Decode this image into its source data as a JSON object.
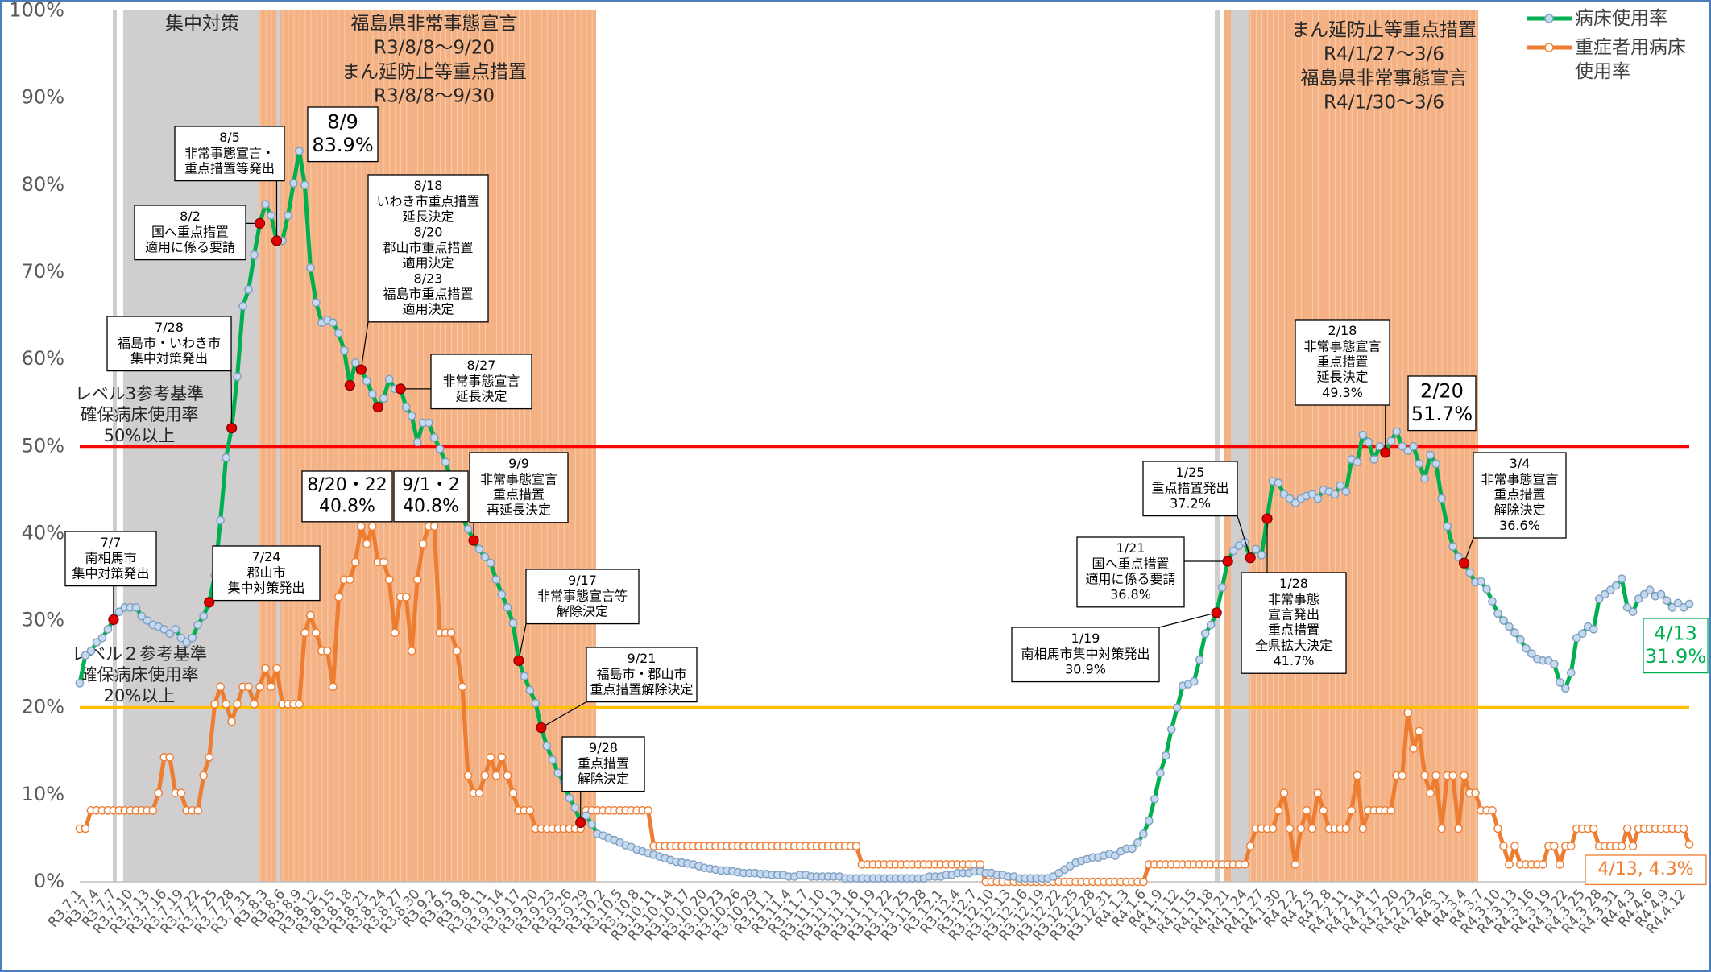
{
  "chart_data": {
    "type": "line",
    "categories": [
      "R3.7.1",
      null,
      null,
      "R3.7.4",
      null,
      null,
      "R3.7.7",
      null,
      null,
      "R3.7.10",
      null,
      null,
      "R3.7.13",
      null,
      null,
      "R3.7.16",
      null,
      null,
      "R3.7.19",
      null,
      null,
      "R3.7.22",
      null,
      null,
      "R3.7.25",
      null,
      null,
      "R3.7.28",
      null,
      null,
      "R3.7.31",
      null,
      null,
      "R3.8.3",
      null,
      null,
      "R3.8.6",
      null,
      null,
      "R3.8.9",
      null,
      null,
      "R3.8.12",
      null,
      null,
      "R3.8.15",
      null,
      null,
      "R3.8.18",
      null,
      null,
      "R3.8.21",
      null,
      null,
      "R3.8.24",
      null,
      null,
      "R3.8.27",
      null,
      null,
      "R3.8.30",
      null,
      null,
      "R3.9.2",
      null,
      null,
      "R3.9.5",
      null,
      null,
      "R3.9.8",
      null,
      null,
      "R3.9.11",
      null,
      null,
      "R3.9.14",
      null,
      null,
      "R3.9.17",
      null,
      null,
      "R3.9.20",
      null,
      null,
      "R3.9.23",
      null,
      null,
      "R3.9.26",
      null,
      null,
      "R3.9.29",
      null,
      null,
      "R3.10.2",
      null,
      null,
      "R3.10.5",
      null,
      null,
      "R3.10.8",
      null,
      null,
      "R3.10.11",
      null,
      null,
      "R3.10.14",
      null,
      null,
      "R3.10.17",
      null,
      null,
      "R3.10.20",
      null,
      null,
      "R3.10.23",
      null,
      null,
      "R3.10.26",
      null,
      null,
      "R3.10.29",
      null,
      null,
      "R3.11.1",
      null,
      null,
      "R3.11.4",
      null,
      null,
      "R3.11.7",
      null,
      null,
      "R3.11.10",
      null,
      null,
      "R3.11.13",
      null,
      null,
      "R3.11.16",
      null,
      null,
      "R3.11.19",
      null,
      null,
      "R3.11.22",
      null,
      null,
      "R3.11.25",
      null,
      null,
      "R3.11.28",
      null,
      null,
      "R3.12.1",
      null,
      null,
      "R3.12.4",
      null,
      null,
      "R3.12.7",
      null,
      null,
      "R3.12.10",
      null,
      null,
      "R3.12.13",
      null,
      null,
      "R3.12.16",
      null,
      null,
      "R3.12.19",
      null,
      null,
      "R3.12.22",
      null,
      null,
      "R3.12.25",
      null,
      null,
      "R3.12.28",
      null,
      null,
      "R3.12.31",
      null,
      null,
      "R4.1.3",
      null,
      null,
      "R4.1.6",
      null,
      null,
      "R4.1.9",
      null,
      null,
      "R4.1.12",
      null,
      null,
      "R4.1.15",
      null,
      null,
      "R4.1.18",
      null,
      null,
      "R4.1.21",
      null,
      null,
      "R4.1.24",
      null,
      null,
      "R4.1.27",
      null,
      null,
      "R4.1.30",
      null,
      null,
      "R4.2.2",
      null,
      null,
      "R4.2.5",
      null,
      null,
      "R4.2.8",
      null,
      null,
      "R4.2.11",
      null,
      null,
      "R4.2.14",
      null,
      null,
      "R4.2.17",
      null,
      null,
      "R4.2.20",
      null,
      null,
      "R4.2.23",
      null,
      null,
      "R4.2.26",
      null,
      null,
      "R4.3.1",
      null,
      null,
      "R4.3.4",
      null,
      null,
      "R4.3.7",
      null,
      null,
      "R4.3.10",
      null,
      null,
      "R4.3.13",
      null,
      null,
      "R4.3.16",
      null,
      null,
      "R4.3.19",
      null,
      null,
      "R4.3.22",
      null,
      null,
      "R4.3.25",
      null,
      null,
      "R4.3.28",
      null,
      null,
      "R4.3.31",
      null,
      null,
      "R4.4.3",
      null,
      null,
      "R4.4.6",
      null,
      null,
      "R4.4.9",
      null,
      null,
      "R4.4.12",
      null
    ],
    "series": [
      {
        "name": "重症者用病床使用率",
        "color": "#ed7d31",
        "marker_color": "#ffffff",
        "values": [
          6.1,
          6.1,
          8.2,
          8.2,
          8.2,
          8.2,
          8.2,
          8.2,
          8.2,
          8.2,
          8.2,
          8.2,
          8.2,
          8.2,
          10.2,
          14.3,
          14.3,
          10.2,
          10.2,
          8.2,
          8.2,
          8.2,
          12.2,
          14.3,
          20.4,
          22.4,
          20.4,
          18.4,
          20.4,
          22.4,
          22.4,
          20.4,
          22.4,
          24.5,
          22.4,
          24.5,
          20.4,
          20.4,
          20.4,
          20.4,
          28.6,
          30.6,
          28.6,
          26.5,
          26.5,
          22.4,
          32.7,
          34.7,
          34.7,
          36.7,
          40.8,
          38.8,
          40.8,
          36.7,
          36.7,
          34.7,
          28.6,
          32.7,
          32.7,
          26.5,
          34.7,
          38.8,
          40.8,
          40.8,
          28.6,
          28.6,
          28.6,
          26.5,
          22.4,
          12.2,
          10.2,
          10.2,
          12.2,
          14.3,
          12.2,
          14.3,
          12.2,
          10.2,
          8.2,
          8.2,
          8.2,
          6.1,
          6.1,
          6.1,
          6.1,
          6.1,
          6.1,
          6.1,
          6.1,
          6.1,
          8.2,
          8.2,
          8.2,
          8.2,
          8.2,
          8.2,
          8.2,
          8.2,
          8.2,
          8.2,
          8.2,
          8.2,
          4.1,
          4.1,
          4.1,
          4.1,
          4.1,
          4.1,
          4.1,
          4.1,
          4.1,
          4.1,
          4.1,
          4.1,
          4.1,
          4.1,
          4.1,
          4.1,
          4.1,
          4.1,
          4.1,
          4.1,
          4.1,
          4.1,
          4.1,
          4.1,
          4.1,
          4.1,
          4.1,
          4.1,
          4.1,
          4.1,
          4.1,
          4.1,
          4.1,
          4.1,
          4.1,
          4.1,
          4.1,
          2.0,
          2.0,
          2.0,
          2.0,
          2.0,
          2.0,
          2.0,
          2.0,
          2.0,
          2.0,
          2.0,
          2.0,
          2.0,
          2.0,
          2.0,
          2.0,
          2.0,
          2.0,
          2.0,
          2.0,
          2.0,
          2.0,
          0,
          0,
          0,
          0,
          0,
          0,
          0,
          0,
          0,
          0,
          0,
          0,
          0,
          0,
          0,
          0,
          0,
          0,
          0,
          0,
          0,
          0,
          0,
          0,
          0,
          0,
          0,
          0,
          0,
          2.0,
          2.0,
          2.0,
          2.0,
          2.0,
          2.0,
          2.0,
          2.0,
          2.0,
          2.0,
          2.0,
          2.0,
          2.0,
          2.0,
          2.0,
          2.0,
          2.0,
          2.0,
          4.1,
          6.1,
          6.1,
          6.1,
          6.1,
          8.2,
          10.2,
          6.1,
          2.0,
          6.1,
          8.2,
          6.1,
          10.2,
          8.2,
          6.1,
          6.1,
          6.1,
          6.1,
          8.2,
          12.2,
          6.1,
          8.2,
          8.2,
          8.2,
          8.2,
          8.2,
          12.2,
          12.2,
          19.4,
          15.3,
          17.3,
          12.2,
          10.2,
          12.2,
          6.1,
          12.2,
          12.2,
          6.1,
          12.2,
          10.2,
          10.2,
          8.2,
          8.2,
          8.2,
          6.1,
          4.1,
          2.0,
          4.1,
          2.0,
          2.0,
          2.0,
          2.0,
          2.0,
          4.1,
          4.1,
          2.0,
          4.1,
          4.1,
          6.1,
          6.1,
          6.1,
          6.1,
          4.1,
          4.1,
          4.1,
          4.1,
          4.1,
          6.1,
          4.1,
          6.1,
          6.1,
          6.1,
          6.1,
          6.1,
          6.1,
          6.1,
          6.1,
          6.1,
          4.3
        ]
      },
      {
        "name": "病床使用率",
        "color": "#00b050",
        "marker_color": "#c5d9f1",
        "values": [
          22.8,
          26.0,
          26.5,
          27.5,
          28.0,
          29.0,
          30.1,
          31.0,
          31.5,
          31.5,
          31.5,
          30.5,
          30.0,
          29.5,
          29.3,
          29.0,
          28.5,
          29.0,
          28.0,
          27.5,
          28.0,
          29.5,
          30.5,
          32.1,
          35.2,
          41.5,
          48.7,
          52.1,
          58.0,
          66.1,
          68.0,
          72.0,
          75.6,
          77.8,
          76.5,
          73.6,
          73.6,
          76.5,
          80.2,
          83.9,
          80.0,
          70.5,
          66.5,
          64.2,
          64.5,
          64.2,
          63.0,
          61.0,
          57.0,
          59.6,
          58.8,
          57.5,
          56.0,
          54.5,
          55.5,
          57.7,
          56.6,
          56.6,
          54.5,
          53.5,
          50.5,
          52.7,
          52.7,
          51.0,
          49.7,
          48.2,
          46.2,
          44.0,
          41.8,
          40.5,
          39.2,
          38.2,
          37.3,
          36.6,
          34.7,
          33.0,
          31.5,
          29.7,
          25.4,
          23.6,
          22.0,
          20.5,
          17.7,
          15.6,
          14.0,
          12.5,
          11.5,
          9.6,
          8.5,
          6.8,
          7.6,
          6.6,
          5.5,
          5.3,
          5.0,
          4.8,
          4.5,
          4.2,
          4.0,
          3.7,
          3.5,
          3.3,
          3.1,
          2.9,
          2.7,
          2.5,
          2.3,
          2.2,
          2.1,
          2.0,
          1.8,
          1.6,
          1.5,
          1.4,
          1.3,
          1.3,
          1.2,
          1.1,
          1.0,
          1.0,
          1.0,
          0.9,
          0.9,
          0.8,
          0.8,
          0.8,
          0.6,
          0.6,
          0.8,
          0.8,
          0.6,
          0.6,
          0.6,
          0.6,
          0.6,
          0.6,
          0.4,
          0.4,
          0.4,
          0.4,
          0.4,
          0.4,
          0.4,
          0.4,
          0.4,
          0.4,
          0.4,
          0.4,
          0.4,
          0.4,
          0.4,
          0.6,
          0.6,
          0.6,
          0.8,
          0.8,
          1.0,
          1.0,
          1.0,
          1.2,
          1.2,
          1.0,
          1.0,
          0.8,
          0.8,
          0.6,
          0.6,
          0.4,
          0.4,
          0.4,
          0.4,
          0.4,
          0.4,
          0.6,
          1.0,
          1.4,
          1.8,
          2.2,
          2.4,
          2.6,
          2.8,
          2.8,
          3.0,
          3.2,
          3.0,
          3.5,
          3.8,
          3.8,
          4.5,
          5.5,
          7.0,
          9.5,
          12.5,
          14.5,
          17.5,
          20.0,
          22.5,
          22.7,
          23.0,
          25.5,
          28.5,
          29.5,
          30.9,
          33.8,
          36.8,
          38.0,
          38.6,
          39.0,
          37.2,
          38.2,
          37.5,
          41.7,
          46.0,
          45.8,
          44.5,
          44.0,
          43.5,
          44.0,
          44.3,
          44.5,
          44.0,
          45.0,
          44.8,
          44.5,
          45.5,
          44.8,
          48.5,
          48.2,
          51.3,
          50.5,
          48.5,
          50.0,
          49.3,
          50.6,
          51.7,
          50.0,
          49.5,
          50.0,
          48.0,
          46.3,
          49.0,
          48.0,
          44.0,
          40.8,
          38.5,
          37.3,
          36.6,
          35.5,
          34.4,
          34.5,
          33.6,
          32.2,
          30.8,
          30.0,
          29.3,
          28.6,
          27.8,
          26.8,
          26.2,
          25.6,
          25.4,
          25.4,
          25.0,
          22.9,
          22.2,
          24.0,
          28.0,
          28.5,
          29.3,
          29.0,
          32.5,
          33.0,
          33.5,
          34.0,
          34.8,
          31.5,
          31.0,
          32.5,
          33.0,
          33.5,
          32.8,
          33.0,
          32.3,
          31.5,
          32.0,
          31.5,
          31.9
        ]
      }
    ],
    "ylim": [
      0,
      100
    ],
    "yticks": [
      {
        "value": 0,
        "label": "0%"
      },
      {
        "value": 10,
        "label": "10%"
      },
      {
        "value": 20,
        "label": "20%"
      },
      {
        "value": 30,
        "label": "30%"
      },
      {
        "value": 40,
        "label": "40%"
      },
      {
        "value": 50,
        "label": "50%"
      },
      {
        "value": 60,
        "label": "60%"
      },
      {
        "value": 70,
        "label": "70%"
      },
      {
        "value": 80,
        "label": "80%"
      },
      {
        "value": 90,
        "label": "90%"
      },
      {
        "value": 100,
        "label": "100%"
      }
    ],
    "grid": false,
    "legend": "top-right",
    "reference_lines": [
      {
        "value": 50,
        "color": "#ff0000",
        "label": [
          "レベル3参考基準",
          "確保病床使用率",
          "50%以上"
        ]
      },
      {
        "value": 20,
        "color": "#ffc000",
        "label": [
          "レベル２参考基準",
          "確保病床使用率",
          "20%以上"
        ]
      }
    ],
    "periods": [
      [
        "集中対策"
      ],
      [
        "福島県非常事態宣言",
        "R3/8/8～9/20",
        "まん延防止等重点措置",
        "R3/8/8～9/30"
      ],
      [
        "まん延防止等重点措置",
        "R4/1/27～3/6",
        "福島県非常事態宣言",
        "R4/1/30～3/6"
      ]
    ],
    "annotations": [
      [
        "7/7",
        "南相馬市",
        "集中対策発出"
      ],
      [
        "7/24",
        "郡山市",
        "集中対策発出"
      ],
      [
        "7/28",
        "福島市・いわき市",
        "集中対策発出"
      ],
      [
        "8/2",
        "国へ重点措置",
        "適用に係る要請"
      ],
      [
        "8/5",
        "非常事態宣言・",
        "重点措置等発出"
      ],
      [
        "8/9",
        "83.9%"
      ],
      [
        "8/18",
        "いわき市重点措置",
        "延長決定",
        "8/20",
        "郡山市重点措置",
        "適用決定",
        "8/23",
        "福島市重点措置",
        "適用決定"
      ],
      [
        "8/27",
        "非常事態宣言",
        "延長決定"
      ],
      [
        "8/20・22",
        "40.8%"
      ],
      [
        "9/1・2",
        "40.8%"
      ],
      [
        "9/9",
        "非常事態宣言",
        "重点措置",
        "再延長決定"
      ],
      [
        "9/17",
        "非常事態宣言等",
        "解除決定"
      ],
      [
        "9/21",
        "福島市・郡山市",
        "重点措置解除決定"
      ],
      [
        "9/28",
        "重点措置",
        "解除決定"
      ],
      [
        "1/19",
        "南相馬市集中対策発出",
        "30.9%"
      ],
      [
        "1/21",
        "国へ重点措置",
        "適用に係る要請",
        "36.8%"
      ],
      [
        "1/25",
        "重点措置発出",
        "37.2%"
      ],
      [
        "1/28",
        "非常事態",
        "宣言発出",
        "重点措置",
        "全県拡大決定",
        "41.7%"
      ],
      [
        "2/18",
        "非常事態宣言",
        "重点措置",
        "延長決定",
        "49.3%"
      ],
      [
        "2/20",
        "51.7%"
      ],
      [
        "3/4",
        "非常事態宣言",
        "重点措置",
        "解除決定",
        "36.6%"
      ],
      [
        "4/13",
        "31.9%"
      ],
      [
        "4/13, 4.3%"
      ]
    ]
  }
}
